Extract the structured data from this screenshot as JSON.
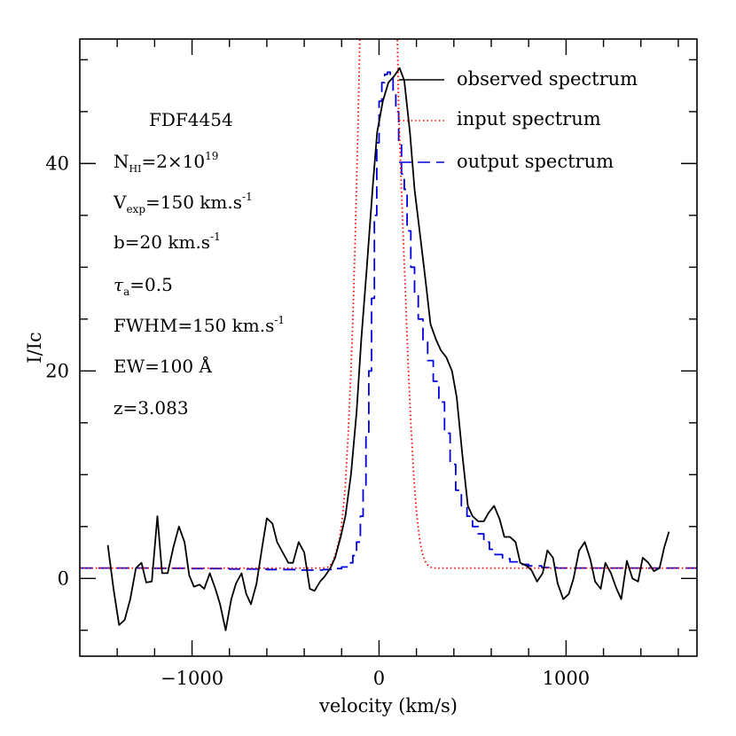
{
  "chart_data": {
    "type": "line",
    "title": "",
    "xlabel": "velocity (km/s)",
    "ylabel": "I/Ic",
    "xlim": [
      -1600,
      1700
    ],
    "ylim": [
      -7.5,
      52
    ],
    "x_ticks": [
      -1000,
      0,
      1000
    ],
    "x_tick_labels": [
      "−1000",
      "0",
      "1000"
    ],
    "y_ticks": [
      0,
      20,
      40
    ],
    "y_tick_labels": [
      "0",
      "20",
      "40"
    ],
    "grid": false,
    "legend_position": "top-right",
    "annotations": {
      "object": "FDF4454",
      "nhi_base": "N",
      "nhi_sub": "HI",
      "nhi_mid": "=2×10",
      "nhi_sup": "19",
      "vexp_base": "V",
      "vexp_sub": "exp",
      "vexp_mid": "=150 km.s",
      "vexp_sup": "-1",
      "b_mid": "b=20 km.s",
      "b_sup": "-1",
      "tau_base": "τ",
      "tau_sub": "a",
      "tau_mid": "=0.5",
      "fwhm_mid": "FWHM=150 km.s",
      "fwhm_sup": "-1",
      "ew": "EW=100 Å",
      "z": "z=3.083"
    },
    "series": [
      {
        "name": "observed spectrum",
        "color": "#000000",
        "style": "solid",
        "points": [
          [
            -1450,
            3.2
          ],
          [
            -1420,
            -1.0
          ],
          [
            -1390,
            -4.5
          ],
          [
            -1360,
            -4.0
          ],
          [
            -1330,
            -2.0
          ],
          [
            -1300,
            1.0
          ],
          [
            -1270,
            1.5
          ],
          [
            -1245,
            -0.4
          ],
          [
            -1215,
            -0.3
          ],
          [
            -1185,
            6.0
          ],
          [
            -1160,
            0.5
          ],
          [
            -1130,
            0.5
          ],
          [
            -1100,
            3.0
          ],
          [
            -1070,
            5.0
          ],
          [
            -1040,
            3.5
          ],
          [
            -1015,
            0.3
          ],
          [
            -990,
            -0.8
          ],
          [
            -960,
            -0.6
          ],
          [
            -935,
            -1.0
          ],
          [
            -905,
            0.5
          ],
          [
            -875,
            -1.0
          ],
          [
            -850,
            -2.5
          ],
          [
            -820,
            -5.0
          ],
          [
            -790,
            -2.0
          ],
          [
            -765,
            -0.5
          ],
          [
            -735,
            0.5
          ],
          [
            -710,
            -1.5
          ],
          [
            -685,
            -2.5
          ],
          [
            -655,
            -0.5
          ],
          [
            -625,
            3.0
          ],
          [
            -600,
            5.8
          ],
          [
            -570,
            5.3
          ],
          [
            -545,
            3.5
          ],
          [
            -515,
            2.5
          ],
          [
            -485,
            1.5
          ],
          [
            -460,
            1.5
          ],
          [
            -430,
            3.5
          ],
          [
            -400,
            2.5
          ],
          [
            -370,
            -1.0
          ],
          [
            -345,
            -1.2
          ],
          [
            -315,
            -0.3
          ],
          [
            -290,
            0.2
          ],
          [
            -260,
            1.0
          ],
          [
            -235,
            2.0
          ],
          [
            -205,
            4.0
          ],
          [
            -180,
            6.0
          ],
          [
            -150,
            10.0
          ],
          [
            -120,
            16.0
          ],
          [
            -95,
            23.0
          ],
          [
            -65,
            30.0
          ],
          [
            -35,
            37.5
          ],
          [
            -10,
            43.0
          ],
          [
            20,
            46.0
          ],
          [
            50,
            47.8
          ],
          [
            80,
            48.4
          ],
          [
            110,
            49.2
          ],
          [
            135,
            48.0
          ],
          [
            165,
            43.0
          ],
          [
            190,
            37.5
          ],
          [
            220,
            33.0
          ],
          [
            250,
            28.5
          ],
          [
            275,
            24.5
          ],
          [
            305,
            23.0
          ],
          [
            330,
            22.0
          ],
          [
            360,
            21.3
          ],
          [
            390,
            20.0
          ],
          [
            415,
            17.5
          ],
          [
            445,
            12.0
          ],
          [
            475,
            7.0
          ],
          [
            500,
            6.0
          ],
          [
            530,
            5.5
          ],
          [
            560,
            5.5
          ],
          [
            585,
            6.3
          ],
          [
            615,
            7.0
          ],
          [
            645,
            5.7
          ],
          [
            670,
            4.0
          ],
          [
            700,
            4.0
          ],
          [
            730,
            3.5
          ],
          [
            755,
            1.5
          ],
          [
            790,
            1.2
          ],
          [
            815,
            0.8
          ],
          [
            845,
            -0.3
          ],
          [
            875,
            0.5
          ],
          [
            900,
            2.7
          ],
          [
            930,
            2.0
          ],
          [
            955,
            -0.5
          ],
          [
            985,
            -2.0
          ],
          [
            1015,
            -1.5
          ],
          [
            1040,
            0.0
          ],
          [
            1070,
            2.7
          ],
          [
            1100,
            3.5
          ],
          [
            1130,
            1.8
          ],
          [
            1155,
            -0.3
          ],
          [
            1185,
            -1.0
          ],
          [
            1210,
            1.5
          ],
          [
            1240,
            0.5
          ],
          [
            1270,
            -1.0
          ],
          [
            1295,
            -2.0
          ],
          [
            1325,
            1.7
          ],
          [
            1355,
            0.0
          ],
          [
            1385,
            -0.3
          ],
          [
            1410,
            2.0
          ],
          [
            1440,
            1.5
          ],
          [
            1470,
            0.7
          ],
          [
            1500,
            1.0
          ],
          [
            1525,
            3.0
          ],
          [
            1550,
            4.5
          ]
        ]
      },
      {
        "name": "input spectrum",
        "color": "#ff0000",
        "style": "dotted",
        "points": [
          [
            -1600,
            1.0
          ],
          [
            -300,
            1.0
          ],
          [
            -270,
            1.1
          ],
          [
            -250,
            1.5
          ],
          [
            -230,
            2.5
          ],
          [
            -210,
            4.0
          ],
          [
            -195,
            6.0
          ],
          [
            -180,
            9.0
          ],
          [
            -165,
            14.0
          ],
          [
            -150,
            20.0
          ],
          [
            -140,
            25.0
          ],
          [
            -130,
            31.0
          ],
          [
            -120,
            38.0
          ],
          [
            -112,
            44.0
          ],
          [
            -106,
            49.0
          ],
          [
            -103,
            52.0
          ],
          [
            -100,
            58.0
          ],
          [
            95,
            58.0
          ],
          [
            98,
            52.0
          ],
          [
            101,
            49.0
          ],
          [
            105,
            45.0
          ],
          [
            113,
            41.0
          ],
          [
            125,
            35.0
          ],
          [
            140,
            28.0
          ],
          [
            155,
            21.0
          ],
          [
            170,
            15.0
          ],
          [
            185,
            10.0
          ],
          [
            200,
            6.5
          ],
          [
            215,
            4.0
          ],
          [
            230,
            2.5
          ],
          [
            245,
            1.7
          ],
          [
            260,
            1.3
          ],
          [
            280,
            1.05
          ],
          [
            300,
            1.0
          ],
          [
            1700,
            1.0
          ]
        ]
      },
      {
        "name": "output spectrum",
        "color": "#0000dd",
        "style": "dashed-step",
        "points": [
          [
            -1600,
            1.0
          ],
          [
            -1400,
            1.0
          ],
          [
            -1200,
            0.98
          ],
          [
            -1000,
            0.95
          ],
          [
            -800,
            0.9
          ],
          [
            -600,
            0.85
          ],
          [
            -450,
            0.8
          ],
          [
            -350,
            0.8
          ],
          [
            -300,
            0.85
          ],
          [
            -250,
            0.95
          ],
          [
            -200,
            1.1
          ],
          [
            -165,
            1.5
          ],
          [
            -140,
            2.2
          ],
          [
            -120,
            3.5
          ],
          [
            -100,
            6.0
          ],
          [
            -85,
            9.0
          ],
          [
            -70,
            14.0
          ],
          [
            -55,
            20.0
          ],
          [
            -40,
            27.0
          ],
          [
            -25,
            35.0
          ],
          [
            -12,
            42.0
          ],
          [
            0,
            46.0
          ],
          [
            15,
            47.8
          ],
          [
            30,
            48.6
          ],
          [
            45,
            48.8
          ],
          [
            60,
            48.4
          ],
          [
            75,
            47.0
          ],
          [
            90,
            45.0
          ],
          [
            105,
            42.0
          ],
          [
            120,
            39.0
          ],
          [
            135,
            37.5
          ],
          [
            150,
            33.5
          ],
          [
            170,
            30.0
          ],
          [
            190,
            27.5
          ],
          [
            210,
            25.0
          ],
          [
            235,
            23.0
          ],
          [
            260,
            21.0
          ],
          [
            290,
            19.0
          ],
          [
            320,
            17.0
          ],
          [
            350,
            14.0
          ],
          [
            380,
            11.0
          ],
          [
            410,
            8.5
          ],
          [
            440,
            7.0
          ],
          [
            470,
            6.0
          ],
          [
            500,
            5.0
          ],
          [
            530,
            4.3
          ],
          [
            560,
            3.5
          ],
          [
            590,
            2.8
          ],
          [
            620,
            2.3
          ],
          [
            660,
            1.9
          ],
          [
            700,
            1.6
          ],
          [
            750,
            1.35
          ],
          [
            800,
            1.2
          ],
          [
            870,
            1.05
          ],
          [
            950,
            1.0
          ],
          [
            1100,
            1.0
          ],
          [
            1300,
            1.0
          ],
          [
            1500,
            1.0
          ],
          [
            1700,
            1.0
          ]
        ]
      }
    ]
  }
}
